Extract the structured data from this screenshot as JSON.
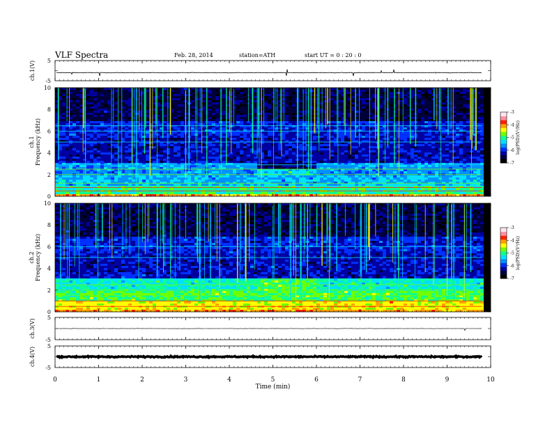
{
  "header": {
    "title": "VLF  Spectra",
    "date": "Feb. 28, 2014",
    "station": "station=ATH",
    "start": "start  UT =   0 : 20 : 0"
  },
  "chart_data": [
    {
      "type": "line",
      "panel": "ch1-waveform",
      "ylabel": "ch.1(V)",
      "ylim": [
        -5,
        5
      ],
      "yticks": [
        "5",
        "-5"
      ],
      "series": [
        {
          "values_note": "noise centered near -1 V",
          "mean": -1.0
        }
      ]
    },
    {
      "type": "heatmap",
      "panel": "ch1-spectrogram",
      "ylabel": "Frequency (kHz)",
      "ylabel2": "ch.1",
      "ylim": [
        0,
        10
      ],
      "yticks": [
        "0",
        "2",
        "4",
        "6",
        "8",
        "10"
      ],
      "colorbar": {
        "label": "log(PSD)(V²/Hz)",
        "ticks": [
          "-3",
          "-4",
          "-5",
          "-6",
          "-7"
        ],
        "range": [
          -7,
          -3
        ]
      },
      "segments_min": [
        0,
        4.6,
        6.0,
        9.8
      ],
      "bands_khz": [
        0.5,
        0.8,
        1.2,
        2.0,
        2.5,
        2.9,
        5.0,
        6.0,
        6.5
      ]
    },
    {
      "type": "heatmap",
      "panel": "ch2-spectrogram",
      "ylabel": "Frequency (kHz)",
      "ylabel2": "ch.2",
      "ylim": [
        0,
        10
      ],
      "yticks": [
        "0",
        "2",
        "4",
        "6",
        "8",
        "10"
      ],
      "colorbar": {
        "label": "log(PSD)(V²/Hz)",
        "ticks": [
          "-3",
          "-4",
          "-5",
          "-6",
          "-7"
        ],
        "range": [
          -7,
          -3
        ]
      },
      "segments_min": [
        0,
        4.6,
        6.0,
        9.8
      ],
      "bands_khz": [
        0.5,
        1.0,
        1.5,
        2.0,
        2.5,
        3.0,
        5.0,
        6.0
      ]
    },
    {
      "type": "line",
      "panel": "ch3-waveform",
      "ylabel": "ch.3(V)",
      "ylim": [
        -5,
        5
      ],
      "yticks": [
        "5",
        "-5"
      ],
      "series": [
        {
          "mean": 0.0
        }
      ]
    },
    {
      "type": "line",
      "panel": "ch4-waveform",
      "ylabel": "ch.4(V)",
      "ylim": [
        -5,
        5
      ],
      "yticks": [
        "5",
        "-5"
      ],
      "series": [
        {
          "mean": 0.0
        }
      ]
    }
  ],
  "xaxis": {
    "label": "Time  (min)",
    "ticks": [
      "0",
      "1",
      "2",
      "3",
      "4",
      "5",
      "6",
      "7",
      "8",
      "9",
      "10"
    ],
    "range": [
      0,
      10
    ],
    "data_end": 9.8
  },
  "colormap": [
    "#000000",
    "#00003a",
    "#0000a0",
    "#0030ff",
    "#0090ff",
    "#00e0ff",
    "#10ff90",
    "#70ff00",
    "#ffff00",
    "#ffa000",
    "#ff2000",
    "#ff90a0",
    "#ffe6f0"
  ]
}
